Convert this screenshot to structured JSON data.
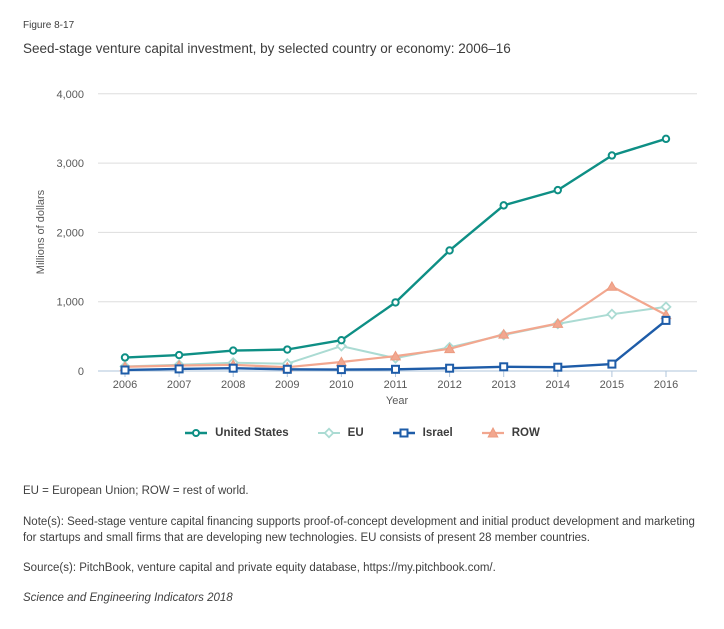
{
  "figure": {
    "label": "Figure 8-17",
    "title": "Seed-stage venture capital investment, by selected country or economy: 2006–16"
  },
  "chart_data": {
    "type": "line",
    "title": "Seed-stage venture capital investment, by selected country or economy: 2006–16",
    "xlabel": "Year",
    "ylabel": "Millions of dollars",
    "ylim": [
      0,
      4000
    ],
    "grid": true,
    "legend_position": "bottom",
    "y_ticks": {
      "values": [
        0,
        1000,
        2000,
        3000,
        4000
      ],
      "labels": [
        "0",
        "1,000",
        "2,000",
        "3,000",
        "4,000"
      ]
    },
    "categories": [
      "2006",
      "2007",
      "2008",
      "2009",
      "2010",
      "2011",
      "2012",
      "2013",
      "2014",
      "2015",
      "2016"
    ],
    "series": [
      {
        "name": "United States",
        "marker": "circle",
        "color": "#0E8F85",
        "values": [
          195,
          230,
          295,
          310,
          445,
          990,
          1740,
          2390,
          2610,
          3110,
          3350
        ]
      },
      {
        "name": "EU",
        "marker": "diamond",
        "color": "#ABDBD3",
        "values": [
          65,
          90,
          120,
          105,
          360,
          185,
          340,
          520,
          680,
          820,
          925
        ]
      },
      {
        "name": "Israel",
        "marker": "square",
        "color": "#1E5CA8",
        "values": [
          15,
          30,
          40,
          25,
          20,
          25,
          40,
          60,
          55,
          100,
          730
        ]
      },
      {
        "name": "ROW",
        "marker": "triangle",
        "color": "#F2A78F",
        "marker_stroke": "#EC9B80",
        "values": [
          60,
          80,
          90,
          55,
          130,
          215,
          320,
          530,
          685,
          1220,
          810
        ]
      }
    ]
  },
  "colors": {
    "grid": "#DDDDDD",
    "axis": "#AFC4DB",
    "tick_label": "#595959",
    "text": "#404040"
  },
  "footnotes": {
    "abbreviations": "EU = European Union; ROW = rest of world.",
    "note": "Note(s): Seed-stage venture capital financing supports proof-of-concept development and initial product development and marketing for startups and small firms that are developing new technologies. EU consists of present 28 member countries.",
    "source": "Source(s): PitchBook, venture capital and private equity database, https://my.pitchbook.com/.",
    "attribution": "Science and Engineering Indicators 2018"
  }
}
